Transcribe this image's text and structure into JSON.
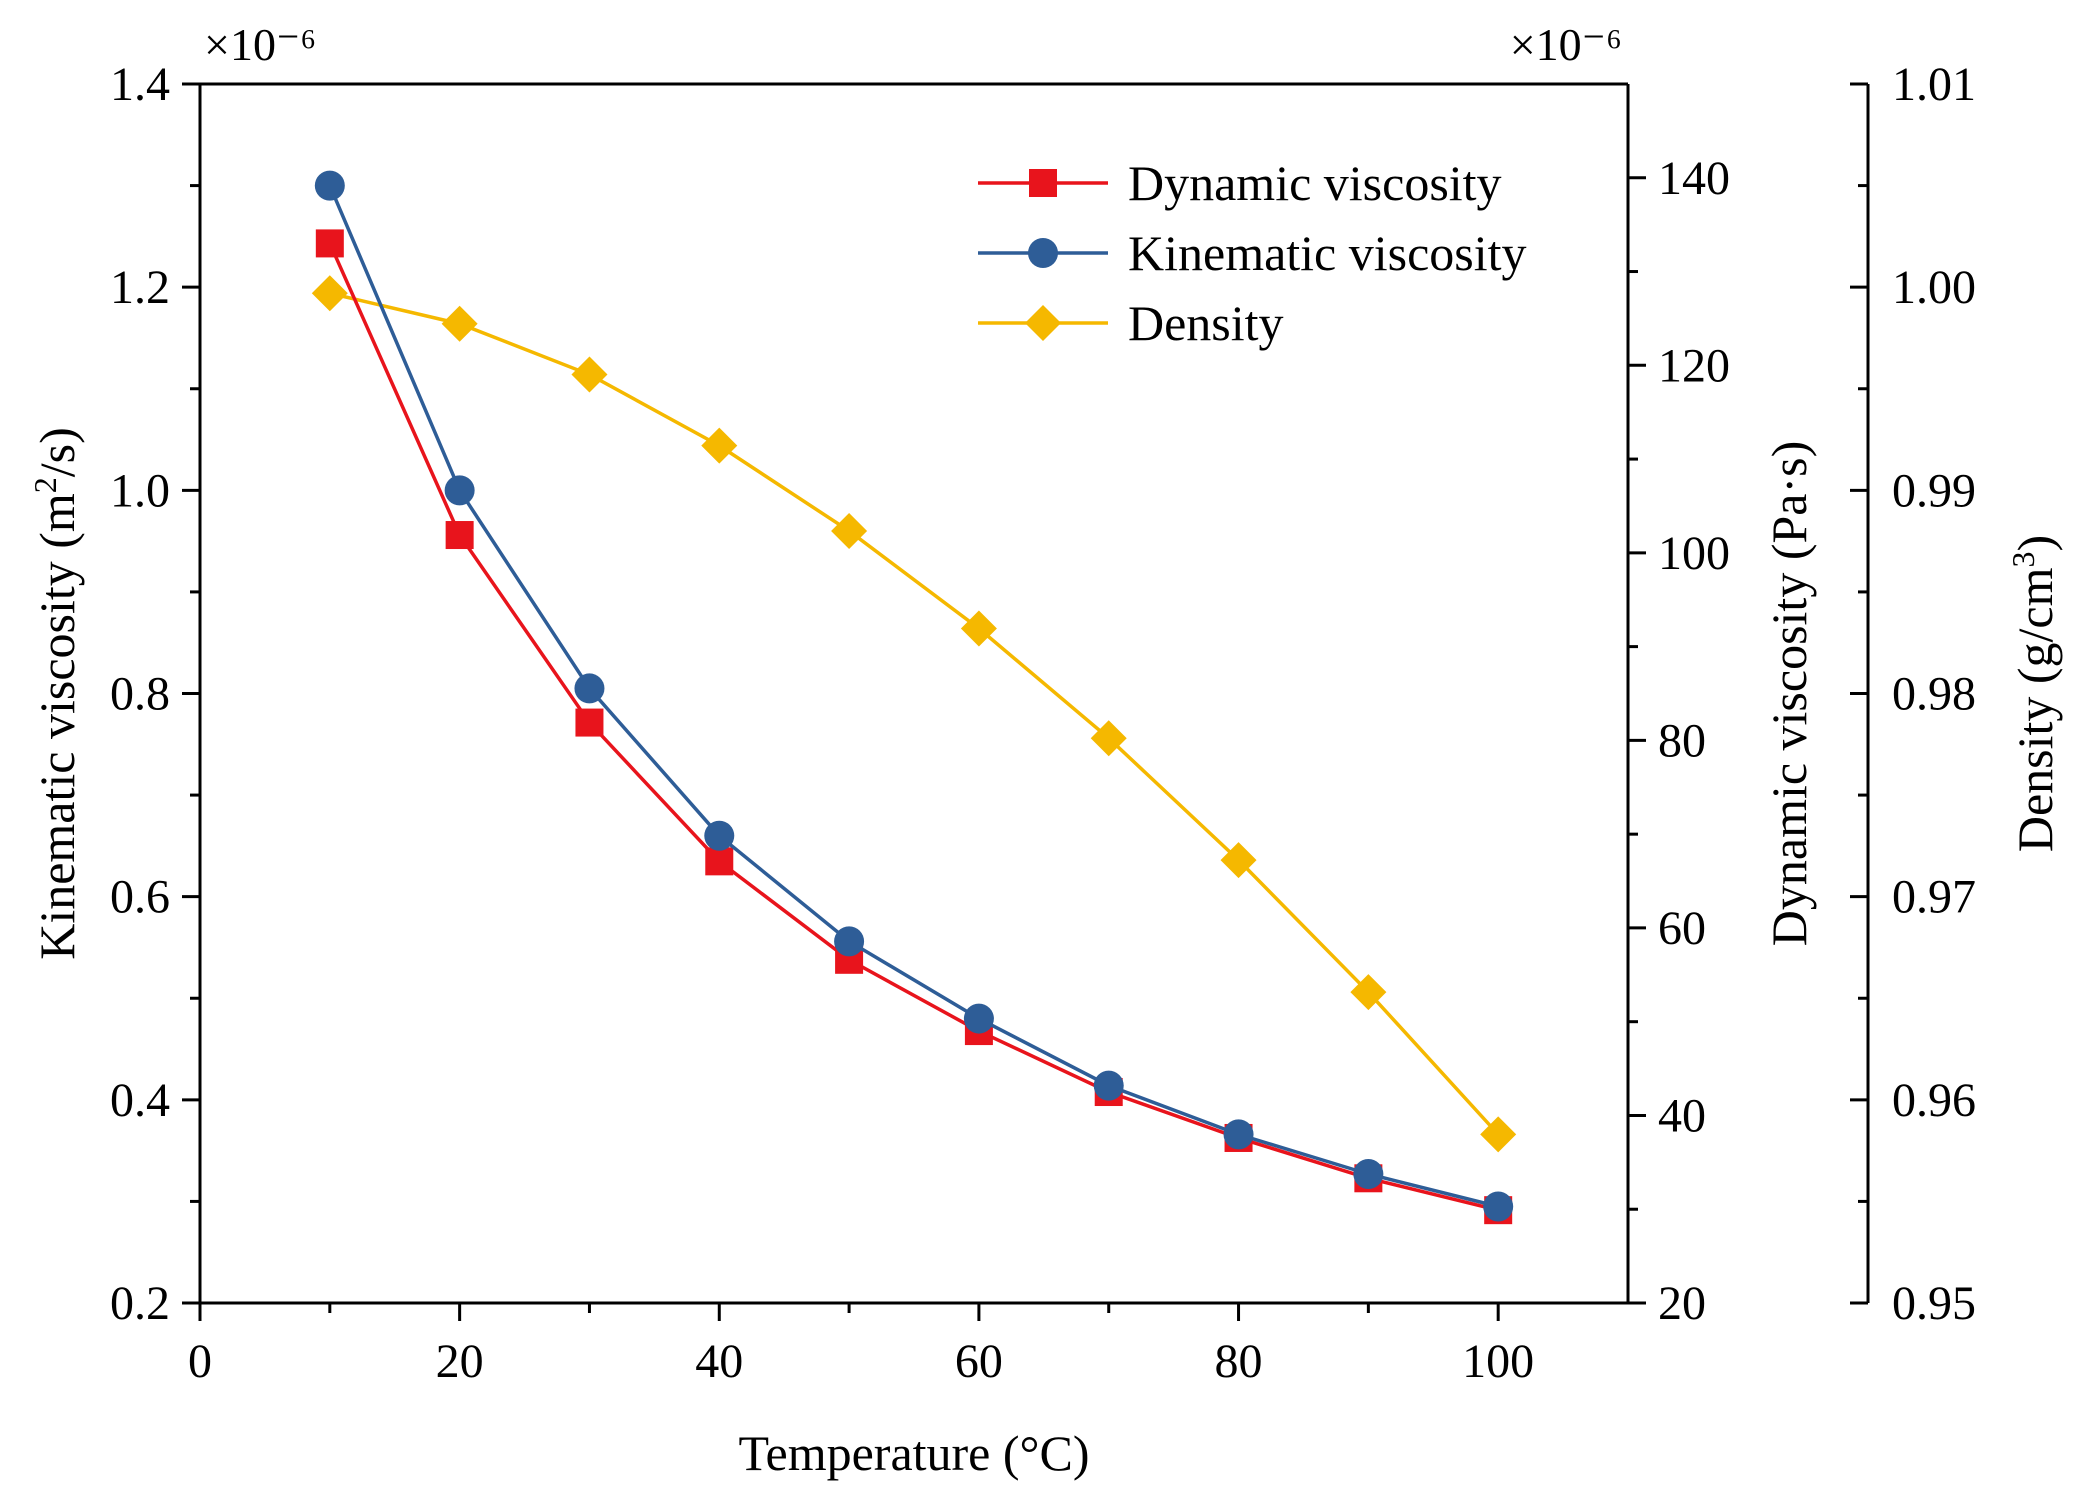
{
  "chart_data": {
    "type": "line",
    "x": [
      10,
      20,
      30,
      40,
      50,
      60,
      70,
      80,
      90,
      100
    ],
    "xlabel": "Temperature (°C)",
    "xlim": [
      0,
      110
    ],
    "xticks": [
      "0",
      "20",
      "40",
      "60",
      "80",
      "100"
    ],
    "axes": {
      "left": {
        "label_parts": [
          "Kinematic viscosity (m",
          "2",
          "/s)"
        ],
        "ylim": [
          0.2,
          1.4
        ],
        "ticks": [
          "0.2",
          "0.4",
          "0.6",
          "0.8",
          "1.0",
          "1.2",
          "1.4"
        ],
        "exponent": "×10⁻⁶"
      },
      "right1": {
        "label": "Dynamic viscosity (Pa·s)",
        "ylim": [
          20,
          150
        ],
        "ticks": [
          "20",
          "40",
          "60",
          "80",
          "100",
          "120",
          "140"
        ],
        "exponent": "×10⁻⁶"
      },
      "right2": {
        "label_parts": [
          "Density (g/cm",
          "3",
          ")"
        ],
        "ylim": [
          0.95,
          1.01
        ],
        "ticks": [
          "0.95",
          "0.96",
          "0.97",
          "0.98",
          "0.99",
          "1.00",
          "1.01"
        ]
      }
    },
    "series": [
      {
        "name": "Dynamic viscosity",
        "axis": "right1",
        "color": "#e8141c",
        "marker": "square",
        "values": [
          133.0,
          101.9,
          81.9,
          67.1,
          56.6,
          49.0,
          42.5,
          37.6,
          33.3,
          29.9
        ]
      },
      {
        "name": "Kinematic viscosity",
        "axis": "left",
        "color": "#2e5d97",
        "marker": "circle",
        "values": [
          1.3,
          1.0,
          0.805,
          0.66,
          0.556,
          0.48,
          0.414,
          0.366,
          0.327,
          0.295
        ]
      },
      {
        "name": "Density",
        "axis": "right2",
        "color": "#f5b800",
        "marker": "diamond",
        "values": [
          0.9997,
          0.9982,
          0.9957,
          0.9922,
          0.988,
          0.9832,
          0.9778,
          0.9718,
          0.9653,
          0.9583
        ]
      }
    ],
    "legend_position": "top-right"
  }
}
